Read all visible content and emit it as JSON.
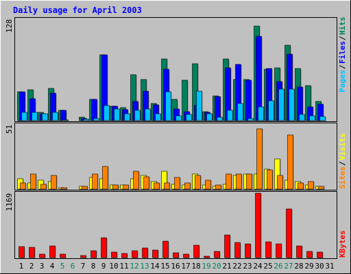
{
  "title": "Daily usage for April 2003",
  "colors": {
    "background": "#c0c0c0",
    "panel": "#c0c0c0",
    "title": "#0000ff",
    "hits": "#00805c",
    "files": "#0000ff",
    "pages": "#00c0ff",
    "visits": "#ffff00",
    "sites": "#ff8000",
    "kbytes": "#ff0000",
    "weekend_label": "#00805c",
    "weekday_label": "#000000"
  },
  "chart_data": [
    {
      "type": "bar",
      "title": "Daily usage for April 2003",
      "ymax_label": "128",
      "ylim": [
        0,
        128
      ],
      "legend": [
        "Pages",
        "Files",
        "Hits"
      ],
      "categories": [
        "1",
        "2",
        "3",
        "4",
        "5",
        "6",
        "7",
        "8",
        "9",
        "10",
        "11",
        "12",
        "13",
        "14",
        "15",
        "16",
        "17",
        "18",
        "19",
        "20",
        "21",
        "22",
        "23",
        "24",
        "25",
        "26",
        "27",
        "28",
        "29",
        "30",
        "31"
      ],
      "series": [
        {
          "name": "Hits",
          "values": [
            36,
            39,
            10,
            41,
            13,
            0,
            4,
            27,
            83,
            18,
            16,
            58,
            52,
            22,
            78,
            27,
            51,
            72,
            11,
            31,
            78,
            52,
            52,
            119,
            65,
            67,
            95,
            66,
            44,
            24,
            0
          ]
        },
        {
          "name": "Files",
          "values": [
            36,
            28,
            9,
            35,
            13,
            0,
            3,
            27,
            83,
            18,
            14,
            24,
            37,
            20,
            65,
            15,
            11,
            19,
            10,
            30,
            67,
            71,
            51,
            106,
            66,
            49,
            84,
            42,
            17,
            21,
            0
          ]
        },
        {
          "name": "Pages",
          "values": [
            10,
            10,
            9,
            10,
            1,
            0,
            2,
            3,
            19,
            15,
            9,
            13,
            15,
            9,
            36,
            6,
            8,
            37,
            9,
            4,
            13,
            22,
            3,
            17,
            25,
            40,
            40,
            8,
            6,
            5,
            0
          ]
        }
      ]
    },
    {
      "type": "bar",
      "ymax_label": "51",
      "ylim": [
        0,
        51
      ],
      "legend": [
        "Sites",
        "Visits"
      ],
      "categories": [
        "1",
        "2",
        "3",
        "4",
        "5",
        "6",
        "7",
        "8",
        "9",
        "10",
        "11",
        "12",
        "13",
        "14",
        "15",
        "16",
        "17",
        "18",
        "19",
        "20",
        "21",
        "22",
        "23",
        "24",
        "25",
        "26",
        "27",
        "28",
        "29",
        "30",
        "31"
      ],
      "series": [
        {
          "name": "Visits",
          "values": [
            8,
            5,
            7,
            6,
            1,
            0,
            2,
            9,
            8,
            3,
            3,
            8,
            11,
            6,
            14,
            4,
            3,
            12,
            3,
            2,
            4,
            11,
            12,
            12,
            16,
            24,
            7,
            6,
            3,
            2,
            0
          ]
        },
        {
          "name": "Sites",
          "values": [
            5,
            12,
            4,
            11,
            1,
            0,
            2,
            12,
            18,
            3,
            3,
            14,
            10,
            5,
            5,
            9,
            5,
            11,
            7,
            3,
            12,
            12,
            12,
            48,
            15,
            11,
            43,
            5,
            6,
            2,
            0
          ]
        }
      ]
    },
    {
      "type": "bar",
      "ymax_label": "1169",
      "ylim": [
        0,
        1169
      ],
      "legend": [
        "KBytes"
      ],
      "categories": [
        "1",
        "2",
        "3",
        "4",
        "5",
        "6",
        "7",
        "8",
        "9",
        "10",
        "11",
        "12",
        "13",
        "14",
        "15",
        "16",
        "17",
        "18",
        "19",
        "20",
        "21",
        "22",
        "23",
        "24",
        "25",
        "26",
        "27",
        "28",
        "29",
        "30",
        "31"
      ],
      "series": [
        {
          "name": "KBytes",
          "values": [
            204,
            187,
            64,
            214,
            68,
            0,
            33,
            123,
            358,
            102,
            70,
            130,
            168,
            142,
            295,
            83,
            66,
            218,
            25,
            108,
            410,
            272,
            244,
            1169,
            280,
            252,
            884,
            211,
            113,
            95,
            0
          ]
        }
      ]
    }
  ],
  "weekend_days": [
    5,
    6,
    12,
    13,
    19,
    20,
    26,
    27
  ]
}
